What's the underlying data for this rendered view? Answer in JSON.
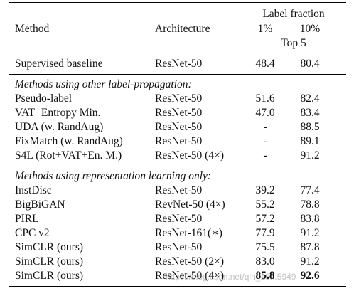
{
  "table": {
    "headers": {
      "method": "Method",
      "architecture": "Architecture",
      "label_fraction": "Label fraction",
      "pct1": "1%",
      "pct10": "10%",
      "top5": "Top 5"
    },
    "baseline": {
      "method": "Supervised baseline",
      "architecture": "ResNet-50",
      "v1": "48.4",
      "v10": "80.4"
    },
    "sections": [
      {
        "title": "Methods using other label-propagation:",
        "rows": [
          {
            "method": "Pseudo-label",
            "architecture": "ResNet-50",
            "v1": "51.6",
            "v10": "82.4"
          },
          {
            "method": "VAT+Entropy Min.",
            "architecture": "ResNet-50",
            "v1": "47.0",
            "v10": "83.4"
          },
          {
            "method": "UDA (w. RandAug)",
            "architecture": "ResNet-50",
            "v1": "-",
            "v10": "88.5"
          },
          {
            "method": "FixMatch (w. RandAug)",
            "architecture": "ResNet-50",
            "v1": "-",
            "v10": "89.1"
          },
          {
            "method": "S4L (Rot+VAT+En. M.)",
            "architecture": "ResNet-50 (4×)",
            "v1": "-",
            "v10": "91.2"
          }
        ]
      },
      {
        "title": "Methods using representation learning only:",
        "rows": [
          {
            "method": "InstDisc",
            "architecture": "ResNet-50",
            "v1": "39.2",
            "v10": "77.4"
          },
          {
            "method": "BigBiGAN",
            "architecture": "RevNet-50 (4×)",
            "v1": "55.2",
            "v10": "78.8"
          },
          {
            "method": "PIRL",
            "architecture": "ResNet-50",
            "v1": "57.2",
            "v10": "83.8"
          },
          {
            "method": "CPC v2",
            "architecture": "ResNet-161(∗)",
            "v1": "77.9",
            "v10": "91.2"
          },
          {
            "method": "SimCLR (ours)",
            "architecture": "ResNet-50",
            "v1": "75.5",
            "v10": "87.8"
          },
          {
            "method": "SimCLR (ours)",
            "architecture": "ResNet-50 (2×)",
            "v1": "83.0",
            "v10": "91.2"
          },
          {
            "method": "SimCLR (ours)",
            "architecture": "ResNet-50 (4×)",
            "v1": "85.8",
            "v10": "92.6"
          }
        ]
      }
    ]
  },
  "watermark": "https://blog.csdn.net/qin_18...5949"
}
